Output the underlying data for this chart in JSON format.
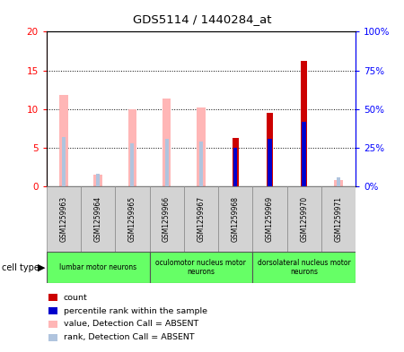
{
  "title": "GDS5114 / 1440284_at",
  "samples": [
    "GSM1259963",
    "GSM1259964",
    "GSM1259965",
    "GSM1259966",
    "GSM1259967",
    "GSM1259968",
    "GSM1259969",
    "GSM1259970",
    "GSM1259971"
  ],
  "count_values": [
    0,
    0,
    0,
    0,
    0,
    6.3,
    9.5,
    16.2,
    0
  ],
  "rank_values": [
    0,
    0,
    0,
    0,
    0,
    25.0,
    31.0,
    42.0,
    0
  ],
  "absent_value": [
    11.8,
    1.5,
    10.0,
    11.4,
    10.2,
    0,
    0,
    0,
    0.8
  ],
  "absent_rank": [
    32.0,
    8.0,
    28.0,
    31.0,
    29.0,
    0,
    0,
    0,
    6.0
  ],
  "ylim_left": [
    0,
    20
  ],
  "ylim_right": [
    0,
    100
  ],
  "yticks_left": [
    0,
    5,
    10,
    15,
    20
  ],
  "yticks_right": [
    0,
    25,
    50,
    75,
    100
  ],
  "ytick_labels_left": [
    "0",
    "5",
    "10",
    "15",
    "20"
  ],
  "ytick_labels_right": [
    "0%",
    "25%",
    "50%",
    "75%",
    "100%"
  ],
  "groups": [
    {
      "label": "lumbar motor neurons",
      "start": 0,
      "end": 3
    },
    {
      "label": "oculomotor nucleus motor\nneurons",
      "start": 3,
      "end": 6
    },
    {
      "label": "dorsolateral nucleus motor\nneurons",
      "start": 6,
      "end": 9
    }
  ],
  "legend_items": [
    {
      "color": "#cc0000",
      "label": "count"
    },
    {
      "color": "#0000cc",
      "label": "percentile rank within the sample"
    },
    {
      "color": "#ffb6b6",
      "label": "value, Detection Call = ABSENT"
    },
    {
      "color": "#b0c4de",
      "label": "rank, Detection Call = ABSENT"
    }
  ],
  "count_color": "#cc0000",
  "rank_color": "#0000cc",
  "absent_bar_color": "#ffb6b6",
  "absent_rank_color": "#b0c4de",
  "grid_color": "#000000",
  "bg_color": "#ffffff",
  "cell_type_label": "cell type",
  "group_color": "#66ff66"
}
